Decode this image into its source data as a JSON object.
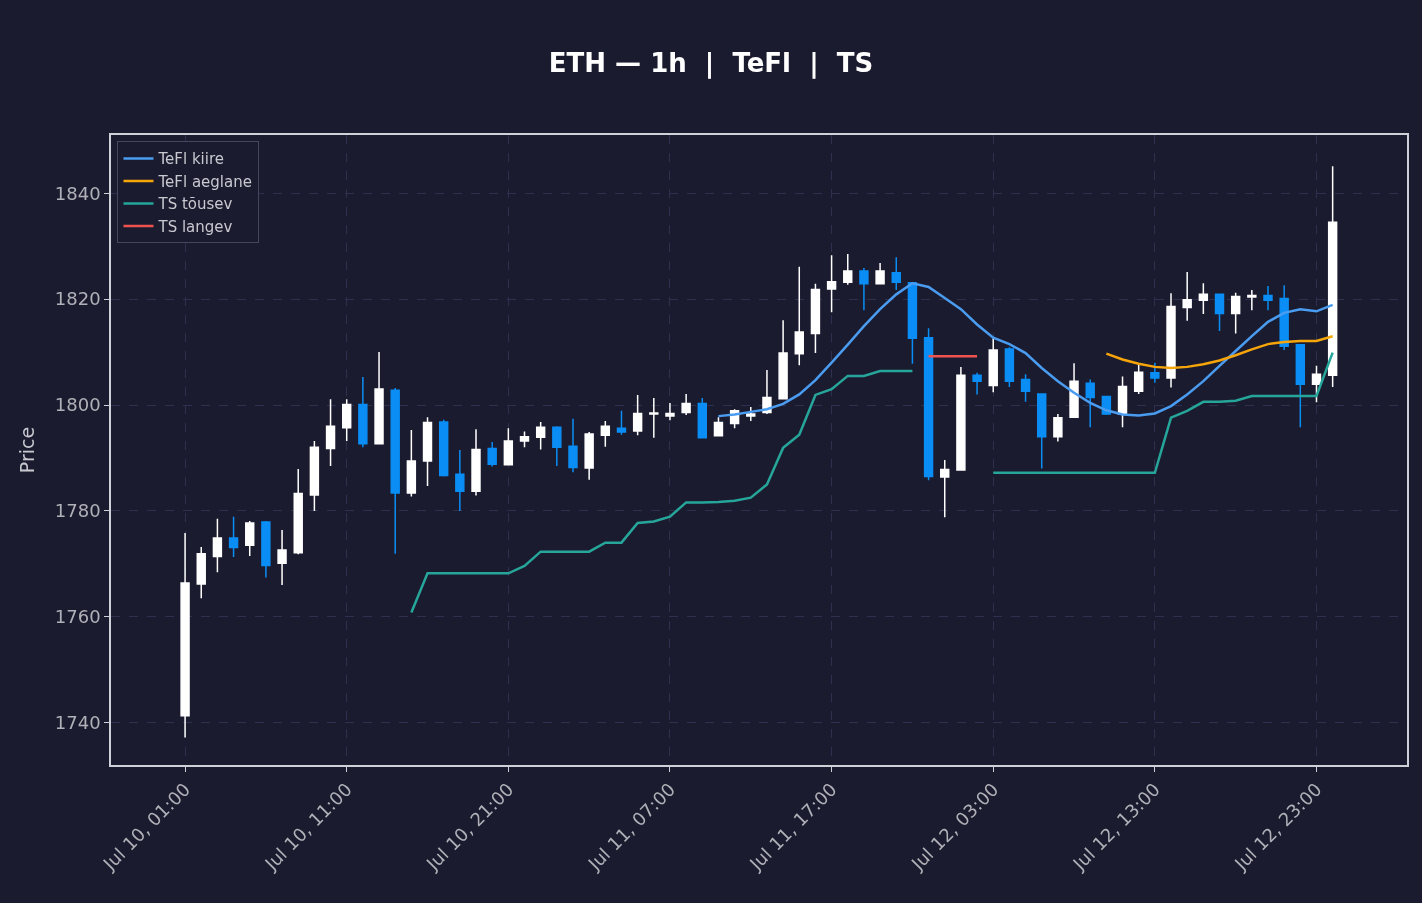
{
  "chart_data": {
    "type": "candlestick",
    "title": "ETH — 1h  |  TeFl  |  TS",
    "ylabel": "Price",
    "x": [
      "--07-10T01:00",
      "--07-10T02:00",
      "--07-10T03:00",
      "--07-10T04:00",
      "--07-10T05:00",
      "--07-10T06:00",
      "--07-10T07:00",
      "--07-10T08:00",
      "--07-10T09:00",
      "--07-10T10:00",
      "--07-10T11:00",
      "--07-10T12:00",
      "--07-10T13:00",
      "--07-10T14:00",
      "--07-10T15:00",
      "--07-10T16:00",
      "--07-10T17:00",
      "--07-10T18:00",
      "--07-10T19:00",
      "--07-10T20:00",
      "--07-10T21:00",
      "--07-10T22:00",
      "--07-10T23:00",
      "--07-11T00:00",
      "--07-11T01:00",
      "--07-11T02:00",
      "--07-11T03:00",
      "--07-11T04:00",
      "--07-11T05:00",
      "--07-11T06:00",
      "--07-11T07:00",
      "--07-11T08:00",
      "--07-11T09:00",
      "--07-11T10:00",
      "--07-11T11:00",
      "--07-11T12:00",
      "--07-11T13:00",
      "--07-11T14:00",
      "--07-11T15:00",
      "--07-11T16:00",
      "--07-11T17:00",
      "--07-11T18:00",
      "--07-11T19:00",
      "--07-11T20:00",
      "--07-11T21:00",
      "--07-11T22:00",
      "--07-11T23:00",
      "--07-12T00:00",
      "--07-12T01:00",
      "--07-12T02:00",
      "--07-12T03:00",
      "--07-12T04:00",
      "--07-12T05:00",
      "--07-12T06:00",
      "--07-12T07:00",
      "--07-12T08:00",
      "--07-12T09:00",
      "--07-12T10:00",
      "--07-12T11:00",
      "--07-12T12:00",
      "--07-12T13:00",
      "--07-12T14:00",
      "--07-12T15:00",
      "--07-12T16:00",
      "--07-12T17:00",
      "--07-12T18:00",
      "--07-12T19:00",
      "--07-12T20:00",
      "--07-12T21:00",
      "--07-12T22:00",
      "--07-12T23:00",
      "--07-13T00:00"
    ],
    "ohlc": [
      [
        1741.3,
        1775.8,
        1737.2,
        1766.4
      ],
      [
        1766.2,
        1773.2,
        1763.5,
        1771.9
      ],
      [
        1771.4,
        1778.5,
        1768.4,
        1774.9
      ],
      [
        1774.9,
        1778.9,
        1771.3,
        1773.1
      ],
      [
        1773.5,
        1778.1,
        1771.5,
        1777.7
      ],
      [
        1777.9,
        1778.1,
        1767.4,
        1769.7
      ],
      [
        1770.1,
        1776.4,
        1766.0,
        1772.6
      ],
      [
        1772.1,
        1787.9,
        1771.8,
        1783.3
      ],
      [
        1783.0,
        1793.2,
        1780.0,
        1792.0
      ],
      [
        1791.8,
        1801.1,
        1788.5,
        1796.0
      ],
      [
        1795.7,
        1801.1,
        1793.2,
        1800.1
      ],
      [
        1800.1,
        1805.3,
        1792.0,
        1792.7
      ],
      [
        1792.7,
        1810.0,
        1792.7,
        1803.0
      ],
      [
        1802.8,
        1803.2,
        1771.9,
        1783.4
      ],
      [
        1783.4,
        1795.3,
        1782.7,
        1789.4
      ],
      [
        1789.4,
        1797.7,
        1784.7,
        1796.7
      ],
      [
        1796.8,
        1797.2,
        1786.5,
        1786.7
      ],
      [
        1786.9,
        1791.5,
        1780.0,
        1783.7
      ],
      [
        1783.7,
        1795.4,
        1782.9,
        1791.6
      ],
      [
        1791.8,
        1793.0,
        1788.4,
        1788.8
      ],
      [
        1788.7,
        1795.6,
        1788.6,
        1793.2
      ],
      [
        1793.2,
        1795.0,
        1792.0,
        1794.0
      ],
      [
        1793.9,
        1796.8,
        1791.6,
        1795.8
      ],
      [
        1795.8,
        1796.0,
        1788.5,
        1792.0
      ],
      [
        1792.2,
        1797.4,
        1787.3,
        1788.2
      ],
      [
        1788.1,
        1794.9,
        1785.9,
        1794.5
      ],
      [
        1794.3,
        1797.0,
        1792.1,
        1796.0
      ],
      [
        1795.6,
        1798.9,
        1794.4,
        1794.9
      ],
      [
        1795.1,
        1801.9,
        1794.3,
        1798.4
      ],
      [
        1798.3,
        1801.3,
        1793.8,
        1798.5
      ],
      [
        1797.9,
        1800.4,
        1797.1,
        1798.4
      ],
      [
        1798.6,
        1802.1,
        1798.1,
        1800.3
      ],
      [
        1800.3,
        1801.3,
        1793.8,
        1793.8
      ],
      [
        1794.2,
        1797.7,
        1794.2,
        1796.7
      ],
      [
        1796.5,
        1799.2,
        1795.6,
        1798.9
      ],
      [
        1797.9,
        1799.6,
        1797.0,
        1798.3
      ],
      [
        1798.6,
        1806.6,
        1798.3,
        1801.4
      ],
      [
        1801.2,
        1816.0,
        1801.2,
        1809.8
      ],
      [
        1809.7,
        1826.1,
        1807.5,
        1813.8
      ],
      [
        1813.5,
        1822.9,
        1809.8,
        1821.8
      ],
      [
        1821.9,
        1828.3,
        1817.5,
        1823.3
      ],
      [
        1823.2,
        1828.5,
        1822.7,
        1825.3
      ],
      [
        1825.3,
        1825.9,
        1817.9,
        1822.9
      ],
      [
        1822.9,
        1826.8,
        1822.9,
        1825.3
      ],
      [
        1825.0,
        1827.9,
        1821.7,
        1823.2
      ],
      [
        1823.1,
        1823.1,
        1807.8,
        1812.6
      ],
      [
        1812.7,
        1814.5,
        1785.8,
        1786.5
      ],
      [
        1786.4,
        1789.6,
        1778.8,
        1787.8
      ],
      [
        1787.7,
        1807.2,
        1787.7,
        1805.6
      ],
      [
        1805.6,
        1806.1,
        1802.0,
        1804.5
      ],
      [
        1803.7,
        1812.6,
        1802.4,
        1810.4
      ],
      [
        1810.6,
        1810.9,
        1803.4,
        1804.5
      ],
      [
        1804.8,
        1805.8,
        1800.6,
        1802.6
      ],
      [
        1802.1,
        1802.1,
        1788.0,
        1794.0
      ],
      [
        1794.0,
        1798.3,
        1793.1,
        1797.6
      ],
      [
        1797.7,
        1807.9,
        1797.7,
        1804.5
      ],
      [
        1804.1,
        1804.8,
        1795.8,
        1801.4
      ],
      [
        1801.6,
        1801.6,
        1798.1,
        1798.3
      ],
      [
        1798.3,
        1805.4,
        1795.8,
        1803.5
      ],
      [
        1802.6,
        1807.7,
        1802.1,
        1806.2
      ],
      [
        1806.1,
        1808.0,
        1804.2,
        1805.1
      ],
      [
        1805.1,
        1821.1,
        1803.3,
        1818.6
      ],
      [
        1818.4,
        1825.1,
        1815.9,
        1819.9
      ],
      [
        1819.8,
        1823.0,
        1817.2,
        1820.9
      ],
      [
        1820.9,
        1821.0,
        1814.0,
        1817.3
      ],
      [
        1817.3,
        1821.2,
        1813.5,
        1820.5
      ],
      [
        1820.4,
        1821.7,
        1817.9,
        1820.7
      ],
      [
        1820.7,
        1822.5,
        1817.9,
        1819.8
      ],
      [
        1820.1,
        1822.6,
        1810.4,
        1811.1
      ],
      [
        1811.4,
        1811.4,
        1795.8,
        1803.9
      ],
      [
        1803.9,
        1807.4,
        1800.5,
        1805.8
      ],
      [
        1805.6,
        1845.1,
        1803.4,
        1834.5
      ]
    ],
    "colors": [
      "#ffffff",
      "#ffffff",
      "#ffffff",
      "#0a8ef5",
      "#ffffff",
      "#0a8ef5",
      "#ffffff",
      "#ffffff",
      "#ffffff",
      "#ffffff",
      "#ffffff",
      "#0a8ef5",
      "#ffffff",
      "#0a8ef5",
      "#ffffff",
      "#ffffff",
      "#0a8ef5",
      "#0a8ef5",
      "#ffffff",
      "#0a8ef5",
      "#ffffff",
      "#ffffff",
      "#ffffff",
      "#0a8ef5",
      "#0a8ef5",
      "#ffffff",
      "#ffffff",
      "#0a8ef5",
      "#ffffff",
      "#ffffff",
      "#ffffff",
      "#ffffff",
      "#0a8ef5",
      "#ffffff",
      "#ffffff",
      "#ffffff",
      "#ffffff",
      "#ffffff",
      "#ffffff",
      "#ffffff",
      "#ffffff",
      "#ffffff",
      "#0a8ef5",
      "#ffffff",
      "#0a8ef5",
      "#0a8ef5",
      "#0a8ef5",
      "#ffffff",
      "#ffffff",
      "#0a8ef5",
      "#ffffff",
      "#0a8ef5",
      "#0a8ef5",
      "#0a8ef5",
      "#ffffff",
      "#ffffff",
      "#0a8ef5",
      "#0a8ef5",
      "#ffffff",
      "#ffffff",
      "#0a8ef5",
      "#ffffff",
      "#ffffff",
      "#ffffff",
      "#0a8ef5",
      "#ffffff",
      "#ffffff",
      "#0a8ef5",
      "#0a8ef5",
      "#0a8ef5",
      "#ffffff",
      "#ffffff"
    ],
    "series": [
      {
        "name": "TeFl kiire",
        "type": "line",
        "color": "#4a9cf0",
        "values": [
          null,
          null,
          null,
          null,
          null,
          null,
          null,
          null,
          null,
          null,
          null,
          null,
          null,
          null,
          null,
          null,
          null,
          null,
          null,
          null,
          null,
          null,
          null,
          null,
          null,
          null,
          null,
          null,
          null,
          null,
          null,
          null,
          null,
          1797.9,
          1798.2,
          1798.7,
          1799.2,
          1800.2,
          1802.0,
          1804.7,
          1808.0,
          1811.4,
          1814.9,
          1818.1,
          1820.9,
          1823.0,
          1822.3,
          1820.2,
          1818.1,
          1815.2,
          1812.7,
          1811.5,
          1809.8,
          1807.0,
          1804.5,
          1802.3,
          1800.4,
          1799.0,
          1798.2,
          1798.0,
          1798.4,
          1799.8,
          1802.0,
          1804.5,
          1807.4,
          1810.2,
          1813.0,
          1815.7,
          1817.4,
          1818.1,
          1817.7,
          1818.9
        ]
      },
      {
        "name": "TeFl aeglane",
        "type": "line",
        "color": "#f5a50a",
        "values": [
          null,
          null,
          null,
          null,
          null,
          null,
          null,
          null,
          null,
          null,
          null,
          null,
          null,
          null,
          null,
          null,
          null,
          null,
          null,
          null,
          null,
          null,
          null,
          null,
          null,
          null,
          null,
          null,
          null,
          null,
          null,
          null,
          null,
          null,
          null,
          null,
          null,
          null,
          null,
          null,
          null,
          null,
          null,
          null,
          null,
          null,
          null,
          null,
          null,
          null,
          null,
          null,
          null,
          null,
          null,
          null,
          null,
          1809.7,
          1808.6,
          1807.8,
          1807.2,
          1807.0,
          1807.2,
          1807.7,
          1808.4,
          1809.4,
          1810.5,
          1811.5,
          1811.9,
          1812.1,
          1812.1,
          1813.0
        ]
      },
      {
        "name": "TS tõusev",
        "type": "line",
        "color": "#26a69a",
        "values": [
          null,
          null,
          null,
          null,
          null,
          null,
          null,
          null,
          null,
          null,
          null,
          null,
          null,
          null,
          1760.8,
          1768.2,
          1768.2,
          1768.2,
          1768.2,
          1768.2,
          1768.2,
          1769.6,
          1772.3,
          1772.3,
          1772.3,
          1772.3,
          1774.0,
          1774.0,
          1777.7,
          1778.0,
          1778.9,
          1781.6,
          1781.6,
          1781.7,
          1781.9,
          1782.5,
          1785.0,
          1791.9,
          1794.4,
          1801.9,
          1803.0,
          1805.5,
          1805.5,
          1806.4,
          1806.4,
          1806.4,
          null,
          null,
          null,
          null,
          1787.2,
          1787.2,
          1787.2,
          1787.2,
          1787.2,
          1787.2,
          1787.2,
          1787.2,
          1787.2,
          1787.2,
          1787.2,
          1797.6,
          1798.9,
          1800.6,
          1800.6,
          1800.8,
          1801.7,
          1801.7,
          1801.7,
          1801.7,
          1801.7,
          1809.9
        ]
      },
      {
        "name": "TS langev",
        "type": "line",
        "color": "#ef5350",
        "values": [
          null,
          null,
          null,
          null,
          null,
          null,
          null,
          null,
          null,
          null,
          null,
          null,
          null,
          null,
          null,
          null,
          null,
          null,
          null,
          null,
          null,
          null,
          null,
          null,
          null,
          null,
          null,
          null,
          null,
          null,
          null,
          null,
          null,
          null,
          null,
          null,
          null,
          null,
          null,
          null,
          null,
          null,
          null,
          null,
          null,
          null,
          1809.2,
          1809.2,
          1809.2,
          1809.2,
          null,
          null,
          null,
          null,
          null,
          null,
          null,
          null,
          null,
          null,
          null,
          null,
          null,
          null,
          null,
          null,
          null,
          null,
          null,
          null,
          null,
          null
        ]
      }
    ],
    "xlim": [
      "--07-09T20:25",
      "--07-13T04:36"
    ],
    "xticks": [
      {
        "value": "--07-10T01:00",
        "label": "Jul 10, 01:00"
      },
      {
        "value": "--07-10T11:00",
        "label": "Jul 10, 11:00"
      },
      {
        "value": "--07-10T21:00",
        "label": "Jul 10, 21:00"
      },
      {
        "value": "--07-11T07:00",
        "label": "Jul 11, 07:00"
      },
      {
        "value": "--07-11T17:00",
        "label": "Jul 11, 17:00"
      },
      {
        "value": "--07-12T03:00",
        "label": "Jul 12, 03:00"
      },
      {
        "value": "--07-12T13:00",
        "label": "Jul 12, 13:00"
      },
      {
        "value": "--07-12T23:00",
        "label": "Jul 12, 23:00"
      }
    ],
    "ylim": [
      1732,
      1851
    ],
    "yticks": [
      1740,
      1760,
      1780,
      1800,
      1820,
      1840
    ],
    "grid": true,
    "legend": "top left",
    "line_style": "solid",
    "marker": "none"
  }
}
